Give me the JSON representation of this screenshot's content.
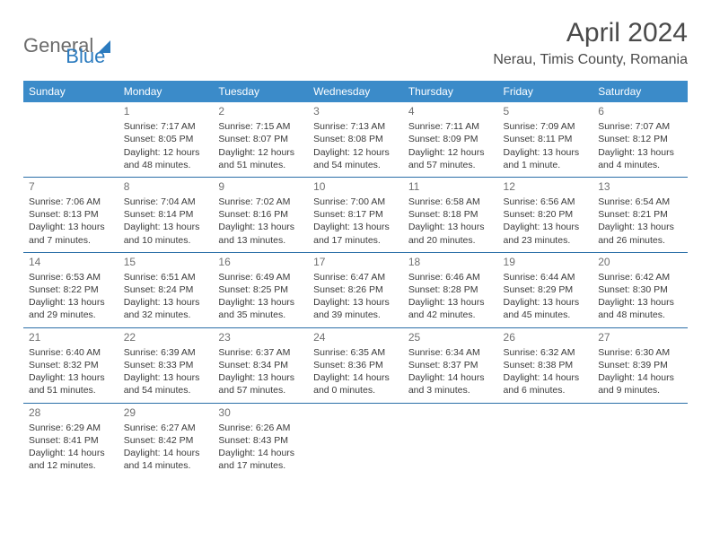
{
  "brand": {
    "part1": "General",
    "part2": "Blue"
  },
  "title": "April 2024",
  "location": "Nerau, Timis County, Romania",
  "colors": {
    "header_bg": "#3b8bc9",
    "row_border": "#2b6fa8",
    "brand_gray": "#6b6b6b",
    "brand_blue": "#2b7bbf",
    "text": "#3a3a3a",
    "daynum": "#707070"
  },
  "dayHeaders": [
    "Sunday",
    "Monday",
    "Tuesday",
    "Wednesday",
    "Thursday",
    "Friday",
    "Saturday"
  ],
  "weeks": [
    [
      {
        "num": "",
        "sunrise": "",
        "sunset": "",
        "daylight": ""
      },
      {
        "num": "1",
        "sunrise": "Sunrise: 7:17 AM",
        "sunset": "Sunset: 8:05 PM",
        "daylight": "Daylight: 12 hours and 48 minutes."
      },
      {
        "num": "2",
        "sunrise": "Sunrise: 7:15 AM",
        "sunset": "Sunset: 8:07 PM",
        "daylight": "Daylight: 12 hours and 51 minutes."
      },
      {
        "num": "3",
        "sunrise": "Sunrise: 7:13 AM",
        "sunset": "Sunset: 8:08 PM",
        "daylight": "Daylight: 12 hours and 54 minutes."
      },
      {
        "num": "4",
        "sunrise": "Sunrise: 7:11 AM",
        "sunset": "Sunset: 8:09 PM",
        "daylight": "Daylight: 12 hours and 57 minutes."
      },
      {
        "num": "5",
        "sunrise": "Sunrise: 7:09 AM",
        "sunset": "Sunset: 8:11 PM",
        "daylight": "Daylight: 13 hours and 1 minute."
      },
      {
        "num": "6",
        "sunrise": "Sunrise: 7:07 AM",
        "sunset": "Sunset: 8:12 PM",
        "daylight": "Daylight: 13 hours and 4 minutes."
      }
    ],
    [
      {
        "num": "7",
        "sunrise": "Sunrise: 7:06 AM",
        "sunset": "Sunset: 8:13 PM",
        "daylight": "Daylight: 13 hours and 7 minutes."
      },
      {
        "num": "8",
        "sunrise": "Sunrise: 7:04 AM",
        "sunset": "Sunset: 8:14 PM",
        "daylight": "Daylight: 13 hours and 10 minutes."
      },
      {
        "num": "9",
        "sunrise": "Sunrise: 7:02 AM",
        "sunset": "Sunset: 8:16 PM",
        "daylight": "Daylight: 13 hours and 13 minutes."
      },
      {
        "num": "10",
        "sunrise": "Sunrise: 7:00 AM",
        "sunset": "Sunset: 8:17 PM",
        "daylight": "Daylight: 13 hours and 17 minutes."
      },
      {
        "num": "11",
        "sunrise": "Sunrise: 6:58 AM",
        "sunset": "Sunset: 8:18 PM",
        "daylight": "Daylight: 13 hours and 20 minutes."
      },
      {
        "num": "12",
        "sunrise": "Sunrise: 6:56 AM",
        "sunset": "Sunset: 8:20 PM",
        "daylight": "Daylight: 13 hours and 23 minutes."
      },
      {
        "num": "13",
        "sunrise": "Sunrise: 6:54 AM",
        "sunset": "Sunset: 8:21 PM",
        "daylight": "Daylight: 13 hours and 26 minutes."
      }
    ],
    [
      {
        "num": "14",
        "sunrise": "Sunrise: 6:53 AM",
        "sunset": "Sunset: 8:22 PM",
        "daylight": "Daylight: 13 hours and 29 minutes."
      },
      {
        "num": "15",
        "sunrise": "Sunrise: 6:51 AM",
        "sunset": "Sunset: 8:24 PM",
        "daylight": "Daylight: 13 hours and 32 minutes."
      },
      {
        "num": "16",
        "sunrise": "Sunrise: 6:49 AM",
        "sunset": "Sunset: 8:25 PM",
        "daylight": "Daylight: 13 hours and 35 minutes."
      },
      {
        "num": "17",
        "sunrise": "Sunrise: 6:47 AM",
        "sunset": "Sunset: 8:26 PM",
        "daylight": "Daylight: 13 hours and 39 minutes."
      },
      {
        "num": "18",
        "sunrise": "Sunrise: 6:46 AM",
        "sunset": "Sunset: 8:28 PM",
        "daylight": "Daylight: 13 hours and 42 minutes."
      },
      {
        "num": "19",
        "sunrise": "Sunrise: 6:44 AM",
        "sunset": "Sunset: 8:29 PM",
        "daylight": "Daylight: 13 hours and 45 minutes."
      },
      {
        "num": "20",
        "sunrise": "Sunrise: 6:42 AM",
        "sunset": "Sunset: 8:30 PM",
        "daylight": "Daylight: 13 hours and 48 minutes."
      }
    ],
    [
      {
        "num": "21",
        "sunrise": "Sunrise: 6:40 AM",
        "sunset": "Sunset: 8:32 PM",
        "daylight": "Daylight: 13 hours and 51 minutes."
      },
      {
        "num": "22",
        "sunrise": "Sunrise: 6:39 AM",
        "sunset": "Sunset: 8:33 PM",
        "daylight": "Daylight: 13 hours and 54 minutes."
      },
      {
        "num": "23",
        "sunrise": "Sunrise: 6:37 AM",
        "sunset": "Sunset: 8:34 PM",
        "daylight": "Daylight: 13 hours and 57 minutes."
      },
      {
        "num": "24",
        "sunrise": "Sunrise: 6:35 AM",
        "sunset": "Sunset: 8:36 PM",
        "daylight": "Daylight: 14 hours and 0 minutes."
      },
      {
        "num": "25",
        "sunrise": "Sunrise: 6:34 AM",
        "sunset": "Sunset: 8:37 PM",
        "daylight": "Daylight: 14 hours and 3 minutes."
      },
      {
        "num": "26",
        "sunrise": "Sunrise: 6:32 AM",
        "sunset": "Sunset: 8:38 PM",
        "daylight": "Daylight: 14 hours and 6 minutes."
      },
      {
        "num": "27",
        "sunrise": "Sunrise: 6:30 AM",
        "sunset": "Sunset: 8:39 PM",
        "daylight": "Daylight: 14 hours and 9 minutes."
      }
    ],
    [
      {
        "num": "28",
        "sunrise": "Sunrise: 6:29 AM",
        "sunset": "Sunset: 8:41 PM",
        "daylight": "Daylight: 14 hours and 12 minutes."
      },
      {
        "num": "29",
        "sunrise": "Sunrise: 6:27 AM",
        "sunset": "Sunset: 8:42 PM",
        "daylight": "Daylight: 14 hours and 14 minutes."
      },
      {
        "num": "30",
        "sunrise": "Sunrise: 6:26 AM",
        "sunset": "Sunset: 8:43 PM",
        "daylight": "Daylight: 14 hours and 17 minutes."
      },
      {
        "num": "",
        "sunrise": "",
        "sunset": "",
        "daylight": ""
      },
      {
        "num": "",
        "sunrise": "",
        "sunset": "",
        "daylight": ""
      },
      {
        "num": "",
        "sunrise": "",
        "sunset": "",
        "daylight": ""
      },
      {
        "num": "",
        "sunrise": "",
        "sunset": "",
        "daylight": ""
      }
    ]
  ]
}
